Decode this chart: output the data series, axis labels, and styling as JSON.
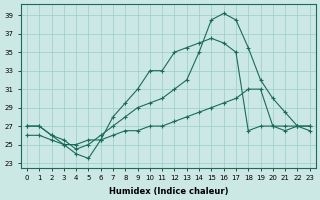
{
  "xlabel": "Humidex (Indice chaleur)",
  "bg_color": "#cce8e4",
  "grid_color": "#99cccc",
  "line_color": "#1a6b5a",
  "xlim": [
    -0.5,
    23.5
  ],
  "ylim": [
    22.5,
    40.2
  ],
  "xticks": [
    0,
    1,
    2,
    3,
    4,
    5,
    6,
    7,
    8,
    9,
    10,
    11,
    12,
    13,
    14,
    15,
    16,
    17,
    18,
    19,
    20,
    21,
    22,
    23
  ],
  "yticks": [
    23,
    25,
    27,
    29,
    31,
    33,
    35,
    37,
    39
  ],
  "line1_x": [
    0,
    1,
    2,
    3,
    4,
    5,
    6,
    7,
    8,
    9,
    10,
    11,
    12,
    13,
    14,
    15,
    16,
    17,
    18,
    19,
    20,
    21,
    22,
    23
  ],
  "line1_y": [
    27,
    27,
    26,
    25,
    24,
    23.5,
    25.5,
    28,
    29.5,
    31,
    33,
    33,
    35,
    35.5,
    36,
    36.5,
    36,
    35,
    26.5,
    27,
    27,
    27,
    27,
    27
  ],
  "line2_x": [
    0,
    1,
    2,
    3,
    4,
    5,
    6,
    7,
    8,
    9,
    10,
    11,
    12,
    13,
    14,
    15,
    16,
    17,
    18,
    19,
    20,
    21,
    22,
    23
  ],
  "line2_y": [
    27,
    27,
    26,
    25.5,
    24.5,
    25,
    26,
    27,
    28,
    29,
    29.5,
    30,
    31,
    32,
    35,
    38.5,
    39.2,
    38.5,
    35.5,
    32,
    30,
    28.5,
    27,
    27
  ],
  "line3_x": [
    0,
    1,
    2,
    3,
    4,
    5,
    6,
    7,
    8,
    9,
    10,
    11,
    12,
    13,
    14,
    15,
    16,
    17,
    18,
    19,
    20,
    21,
    22,
    23
  ],
  "line3_y": [
    26,
    26,
    25.5,
    25,
    25,
    25.5,
    25.5,
    26,
    26.5,
    26.5,
    27,
    27,
    27.5,
    28,
    28.5,
    29,
    29.5,
    30,
    31,
    31,
    27,
    26.5,
    27,
    26.5
  ]
}
